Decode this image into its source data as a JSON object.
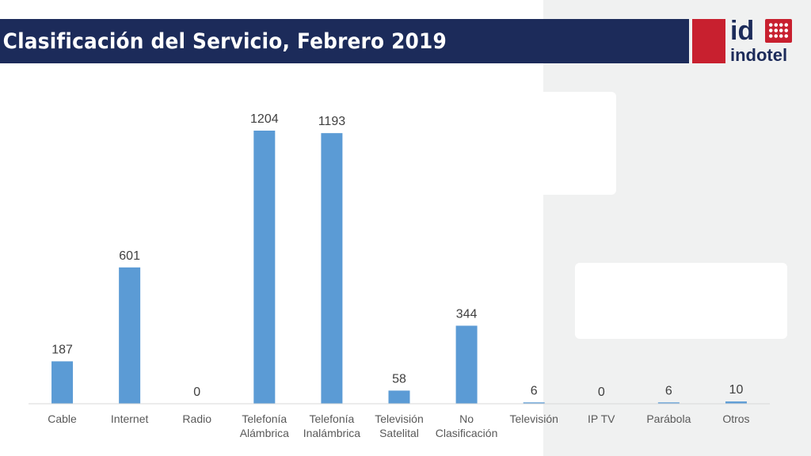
{
  "header": {
    "title": "Clasificación del Servicio, Febrero 2019",
    "logo_top": "id",
    "logo_bottom": "indotel"
  },
  "colors": {
    "title_bar": "#1c2b5a",
    "accent_red": "#c8202f",
    "bar": "#5b9bd5",
    "background_panel": "#f0f1f1"
  },
  "chart_data": {
    "type": "bar",
    "title": "",
    "xlabel": "",
    "ylabel": "",
    "categories": [
      [
        "Cable"
      ],
      [
        "Internet"
      ],
      [
        "Radio"
      ],
      [
        "Telefonía",
        "Alámbrica"
      ],
      [
        "Telefonía",
        "Inalámbrica"
      ],
      [
        "Televisión",
        "Satelital"
      ],
      [
        "No",
        "Clasificación"
      ],
      [
        "Televisión"
      ],
      [
        "IP TV"
      ],
      [
        "Parábola"
      ],
      [
        "Otros"
      ]
    ],
    "values": [
      187,
      601,
      0,
      1204,
      1193,
      58,
      344,
      6,
      0,
      6,
      10
    ],
    "ylim": [
      0,
      1204
    ],
    "grid": false,
    "legend": "none",
    "data_labels": true
  }
}
